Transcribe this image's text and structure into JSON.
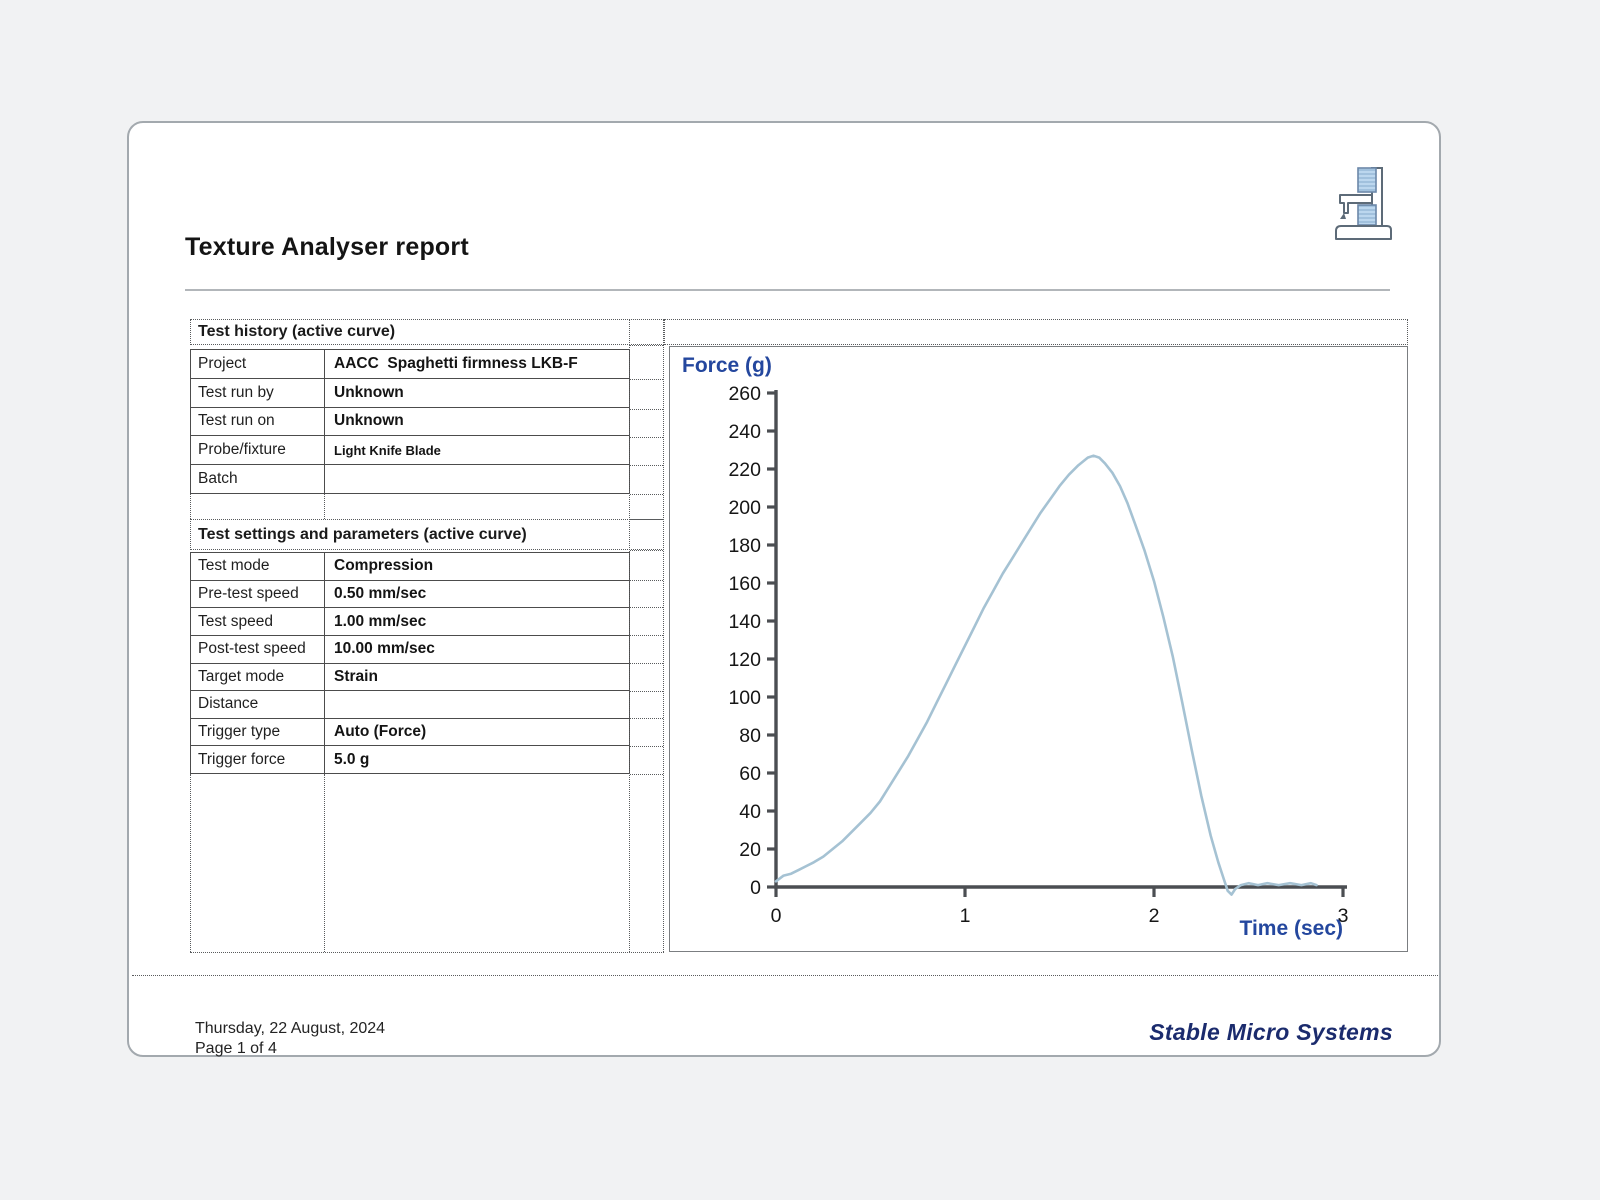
{
  "page": {
    "title": "Texture Analyser report"
  },
  "history": {
    "header": "Test history (active curve)",
    "rows": [
      {
        "label": "Project",
        "value": "AACC  Spaghetti firmness LKB-F"
      },
      {
        "label": "Test run by",
        "value": "Unknown"
      },
      {
        "label": "Test run on",
        "value": "Unknown"
      },
      {
        "label": "Probe/fixture",
        "value": "Light Knife Blade"
      },
      {
        "label": "Batch",
        "value": ""
      }
    ]
  },
  "settings": {
    "header": "Test settings and parameters (active curve)",
    "rows": [
      {
        "label": "Test mode",
        "value": "Compression"
      },
      {
        "label": "Pre-test speed",
        "value": "0.50 mm/sec"
      },
      {
        "label": "Test speed",
        "value": "1.00 mm/sec"
      },
      {
        "label": "Post-test speed",
        "value": "10.00 mm/sec"
      },
      {
        "label": "Target mode",
        "value": "Strain"
      },
      {
        "label": "Distance",
        "value": ""
      },
      {
        "label": "Trigger type",
        "value": "Auto (Force)"
      },
      {
        "label": "Trigger force",
        "value": "5.0 g"
      }
    ]
  },
  "chart_data": {
    "type": "line",
    "title": "",
    "xlabel": "Time (sec)",
    "ylabel": "Force (g)",
    "xlim": [
      0,
      3
    ],
    "ylim": [
      0,
      260
    ],
    "x_ticks": [
      0,
      1,
      2,
      3
    ],
    "y_ticks": [
      0,
      20,
      40,
      60,
      80,
      100,
      120,
      140,
      160,
      180,
      200,
      220,
      240,
      260
    ],
    "grid": false,
    "legend": "none",
    "line_color": "#a5c2d3",
    "axis_color": "#4b4e52",
    "tick_color": "#161616",
    "label_color": "#24479e",
    "series": [
      {
        "name": "Force",
        "points": [
          [
            0,
            3
          ],
          [
            0.04,
            6
          ],
          [
            0.08,
            7
          ],
          [
            0.12,
            9
          ],
          [
            0.16,
            11
          ],
          [
            0.2,
            13
          ],
          [
            0.25,
            16
          ],
          [
            0.3,
            20
          ],
          [
            0.35,
            24
          ],
          [
            0.4,
            29
          ],
          [
            0.45,
            34
          ],
          [
            0.5,
            39
          ],
          [
            0.55,
            45
          ],
          [
            0.6,
            53
          ],
          [
            0.65,
            61
          ],
          [
            0.7,
            69
          ],
          [
            0.75,
            78
          ],
          [
            0.8,
            87
          ],
          [
            0.85,
            97
          ],
          [
            0.9,
            107
          ],
          [
            0.95,
            117
          ],
          [
            1.0,
            127
          ],
          [
            1.05,
            137
          ],
          [
            1.1,
            147
          ],
          [
            1.15,
            156
          ],
          [
            1.2,
            165
          ],
          [
            1.25,
            173
          ],
          [
            1.3,
            181
          ],
          [
            1.35,
            189
          ],
          [
            1.4,
            197
          ],
          [
            1.45,
            204
          ],
          [
            1.5,
            211
          ],
          [
            1.55,
            217
          ],
          [
            1.6,
            222
          ],
          [
            1.65,
            226
          ],
          [
            1.68,
            227
          ],
          [
            1.71,
            226
          ],
          [
            1.74,
            223
          ],
          [
            1.78,
            218
          ],
          [
            1.82,
            211
          ],
          [
            1.86,
            202
          ],
          [
            1.9,
            191
          ],
          [
            1.95,
            177
          ],
          [
            2.0,
            161
          ],
          [
            2.05,
            142
          ],
          [
            2.1,
            121
          ],
          [
            2.15,
            97
          ],
          [
            2.2,
            72
          ],
          [
            2.25,
            48
          ],
          [
            2.3,
            27
          ],
          [
            2.34,
            13
          ],
          [
            2.37,
            4
          ],
          [
            2.39,
            -2
          ],
          [
            2.41,
            -4
          ],
          [
            2.43,
            -1
          ],
          [
            2.46,
            1
          ],
          [
            2.5,
            2
          ],
          [
            2.55,
            1
          ],
          [
            2.6,
            2
          ],
          [
            2.66,
            1
          ],
          [
            2.72,
            2
          ],
          [
            2.78,
            1
          ],
          [
            2.83,
            2
          ],
          [
            2.86,
            1
          ]
        ]
      }
    ]
  },
  "footer": {
    "date": "Thursday, 22 August, 2024",
    "page": "Page 1 of 4",
    "brand": "Stable Micro Systems"
  }
}
